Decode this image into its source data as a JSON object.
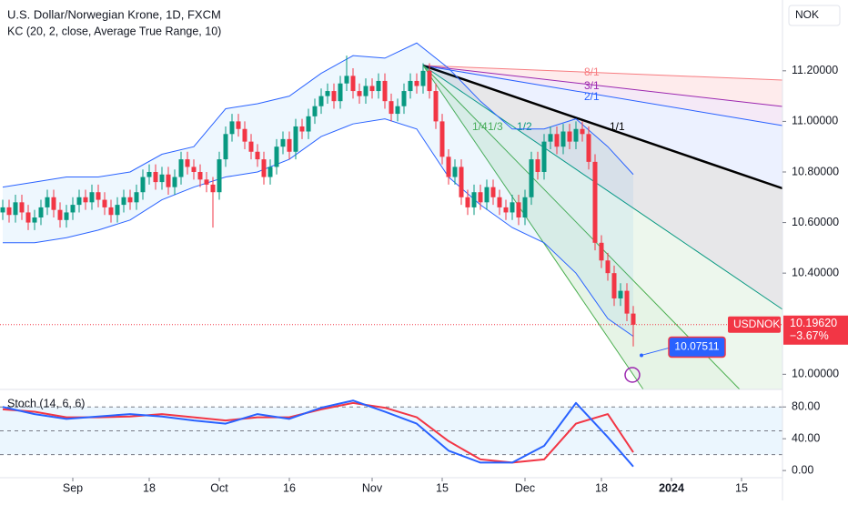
{
  "chart_data": {
    "type": "candlestick",
    "title": "U.S. Dollar/Norwegian Krone, 1D, FXCM",
    "subtitle": "KC (20, 2, close, Average True Range, 10)",
    "currency": "NOK",
    "up_color": "#089981",
    "down_color": "#f23645",
    "ylim": [
      9.94,
      11.48
    ],
    "yticks": [
      {
        "value": 11.2,
        "label": "11.20000"
      },
      {
        "value": 11.0,
        "label": "11.00000"
      },
      {
        "value": 10.8,
        "label": "10.80000"
      },
      {
        "value": 10.6,
        "label": "10.60000"
      },
      {
        "value": 10.4,
        "label": "10.40000"
      },
      {
        "value": 10.0,
        "label": "10.00000"
      }
    ],
    "x_ticks": [
      {
        "index": 11,
        "label": "Sep"
      },
      {
        "index": 23,
        "label": "18"
      },
      {
        "index": 34,
        "label": "Oct"
      },
      {
        "index": 45,
        "label": "16"
      },
      {
        "index": 58,
        "label": "Nov"
      },
      {
        "index": 69,
        "label": "15"
      },
      {
        "index": 82,
        "label": "Dec"
      },
      {
        "index": 94,
        "label": "18"
      },
      {
        "index": 105,
        "label": "2024"
      },
      {
        "index": 116,
        "label": "15"
      }
    ],
    "candles": [
      [
        10.64,
        10.69,
        10.61,
        10.66
      ],
      [
        10.66,
        10.69,
        10.6,
        10.63
      ],
      [
        10.63,
        10.71,
        10.6,
        10.68
      ],
      [
        10.68,
        10.71,
        10.61,
        10.64
      ],
      [
        10.64,
        10.67,
        10.57,
        10.6
      ],
      [
        10.6,
        10.65,
        10.57,
        10.62
      ],
      [
        10.62,
        10.69,
        10.59,
        10.66
      ],
      [
        10.66,
        10.73,
        10.63,
        10.7
      ],
      [
        10.7,
        10.73,
        10.62,
        10.65
      ],
      [
        10.65,
        10.68,
        10.58,
        10.61
      ],
      [
        10.61,
        10.67,
        10.58,
        10.64
      ],
      [
        10.64,
        10.7,
        10.61,
        10.67
      ],
      [
        10.67,
        10.73,
        10.64,
        10.7
      ],
      [
        10.7,
        10.73,
        10.65,
        10.68
      ],
      [
        10.68,
        10.75,
        10.65,
        10.72
      ],
      [
        10.72,
        10.75,
        10.66,
        10.69
      ],
      [
        10.69,
        10.72,
        10.63,
        10.66
      ],
      [
        10.66,
        10.69,
        10.6,
        10.63
      ],
      [
        10.63,
        10.7,
        10.6,
        10.67
      ],
      [
        10.67,
        10.73,
        10.64,
        10.7
      ],
      [
        10.7,
        10.73,
        10.65,
        10.68
      ],
      [
        10.68,
        10.75,
        10.65,
        10.72
      ],
      [
        10.72,
        10.81,
        10.69,
        10.78
      ],
      [
        10.78,
        10.83,
        10.75,
        10.8
      ],
      [
        10.8,
        10.83,
        10.73,
        10.76
      ],
      [
        10.76,
        10.82,
        10.73,
        10.79
      ],
      [
        10.79,
        10.82,
        10.71,
        10.74
      ],
      [
        10.74,
        10.81,
        10.71,
        10.78
      ],
      [
        10.78,
        10.88,
        10.75,
        10.85
      ],
      [
        10.85,
        10.88,
        10.79,
        10.82
      ],
      [
        10.82,
        10.85,
        10.77,
        10.8
      ],
      [
        10.8,
        10.83,
        10.74,
        10.77
      ],
      [
        10.77,
        10.8,
        10.72,
        10.75
      ],
      [
        10.75,
        10.78,
        10.58,
        10.72
      ],
      [
        10.72,
        10.88,
        10.69,
        10.85
      ],
      [
        10.85,
        10.98,
        10.82,
        10.95
      ],
      [
        10.95,
        11.03,
        10.92,
        11.0
      ],
      [
        11.0,
        11.03,
        10.94,
        10.97
      ],
      [
        10.97,
        11.0,
        10.89,
        10.92
      ],
      [
        10.92,
        10.95,
        10.85,
        10.88
      ],
      [
        10.88,
        10.91,
        10.82,
        10.85
      ],
      [
        10.85,
        10.88,
        10.75,
        10.78
      ],
      [
        10.78,
        10.85,
        10.75,
        10.82
      ],
      [
        10.82,
        10.93,
        10.79,
        10.9
      ],
      [
        10.9,
        10.96,
        10.87,
        10.93
      ],
      [
        10.93,
        10.96,
        10.85,
        10.88
      ],
      [
        10.88,
        11.01,
        10.85,
        10.98
      ],
      [
        10.98,
        11.01,
        10.93,
        10.96
      ],
      [
        10.96,
        11.05,
        10.93,
        11.02
      ],
      [
        11.02,
        11.09,
        10.99,
        11.06
      ],
      [
        11.06,
        11.13,
        11.03,
        11.1
      ],
      [
        11.1,
        11.15,
        11.07,
        11.12
      ],
      [
        11.12,
        11.15,
        11.05,
        11.08
      ],
      [
        11.08,
        11.18,
        11.05,
        11.15
      ],
      [
        11.15,
        11.26,
        11.12,
        11.18
      ],
      [
        11.18,
        11.21,
        11.09,
        11.12
      ],
      [
        11.12,
        11.15,
        11.07,
        11.1
      ],
      [
        11.1,
        11.17,
        11.07,
        11.14
      ],
      [
        11.14,
        11.17,
        11.09,
        11.12
      ],
      [
        11.12,
        11.19,
        11.09,
        11.16
      ],
      [
        11.16,
        11.19,
        11.05,
        11.08
      ],
      [
        11.08,
        11.11,
        11.0,
        11.03
      ],
      [
        11.03,
        11.09,
        11.0,
        11.06
      ],
      [
        11.06,
        11.15,
        11.03,
        11.12
      ],
      [
        11.12,
        11.19,
        11.09,
        11.16
      ],
      [
        11.16,
        11.19,
        11.11,
        11.14
      ],
      [
        11.14,
        11.23,
        11.11,
        11.2
      ],
      [
        11.2,
        11.23,
        11.09,
        11.12
      ],
      [
        11.12,
        11.15,
        10.97,
        11.0
      ],
      [
        11.0,
        11.03,
        10.83,
        10.86
      ],
      [
        10.86,
        10.89,
        10.75,
        10.78
      ],
      [
        10.78,
        10.85,
        10.75,
        10.82
      ],
      [
        10.82,
        10.85,
        10.67,
        10.7
      ],
      [
        10.7,
        10.73,
        10.63,
        10.66
      ],
      [
        10.66,
        10.75,
        10.63,
        10.72
      ],
      [
        10.72,
        10.75,
        10.65,
        10.68
      ],
      [
        10.68,
        10.77,
        10.65,
        10.74
      ],
      [
        10.74,
        10.77,
        10.67,
        10.7
      ],
      [
        10.7,
        10.73,
        10.63,
        10.66
      ],
      [
        10.66,
        10.69,
        10.61,
        10.64
      ],
      [
        10.64,
        10.71,
        10.61,
        10.68
      ],
      [
        10.68,
        10.71,
        10.59,
        10.62
      ],
      [
        10.62,
        10.73,
        10.59,
        10.7
      ],
      [
        10.7,
        10.88,
        10.67,
        10.85
      ],
      [
        10.85,
        10.88,
        10.77,
        10.8
      ],
      [
        10.8,
        10.95,
        10.77,
        10.92
      ],
      [
        10.92,
        10.98,
        10.89,
        10.95
      ],
      [
        10.95,
        10.98,
        10.87,
        10.9
      ],
      [
        10.9,
        10.99,
        10.87,
        10.96
      ],
      [
        10.96,
        10.99,
        10.89,
        10.92
      ],
      [
        10.92,
        11.0,
        10.89,
        10.97
      ],
      [
        10.97,
        11.0,
        10.92,
        10.95
      ],
      [
        10.95,
        10.98,
        10.81,
        10.84
      ],
      [
        10.84,
        10.87,
        10.49,
        10.52
      ],
      [
        10.52,
        10.55,
        10.42,
        10.45
      ],
      [
        10.45,
        10.48,
        10.37,
        10.4
      ],
      [
        10.4,
        10.43,
        10.27,
        10.3
      ],
      [
        10.3,
        10.36,
        10.27,
        10.33
      ],
      [
        10.33,
        10.36,
        10.21,
        10.24
      ],
      [
        10.24,
        10.27,
        10.11,
        10.196
      ]
    ],
    "kc": {
      "color": "#2962ff",
      "index": [
        0,
        5,
        10,
        15,
        20,
        25,
        30,
        35,
        40,
        45,
        50,
        55,
        60,
        65,
        70,
        75,
        80,
        85,
        90,
        95,
        99
      ],
      "upper": [
        10.74,
        10.76,
        10.78,
        10.78,
        10.8,
        10.87,
        10.9,
        11.05,
        11.07,
        11.1,
        11.19,
        11.26,
        11.25,
        11.31,
        11.21,
        11.08,
        10.97,
        10.97,
        11.01,
        10.9,
        10.79
      ],
      "lower": [
        10.52,
        10.52,
        10.54,
        10.57,
        10.61,
        10.69,
        10.74,
        10.78,
        10.8,
        10.85,
        10.94,
        10.99,
        11.01,
        10.97,
        10.78,
        10.67,
        10.58,
        10.52,
        10.4,
        10.22,
        10.15
      ]
    },
    "last": {
      "symbol": "USDNOK",
      "price": {
        "value": 10.1962,
        "label": "10.19620"
      },
      "change": {
        "value": -3.67,
        "label": "−3.67%"
      }
    },
    "marker": 10.07511,
    "fan_labels": [
      "8/1",
      "3/1",
      "2/1",
      "1/1",
      "1/2",
      "1/3",
      "1/4"
    ],
    "stoch": {
      "title": "Stoch (14, 6, 6)",
      "ylim": [
        -9,
        102
      ],
      "yticks": [
        {
          "value": 80,
          "label": "80.00"
        },
        {
          "value": 40,
          "label": "40.00"
        },
        {
          "value": 0,
          "label": "0.00"
        }
      ],
      "levels": [
        80,
        50,
        20
      ],
      "index": [
        0,
        5,
        10,
        15,
        20,
        25,
        30,
        35,
        40,
        45,
        50,
        55,
        60,
        65,
        70,
        75,
        80,
        85,
        90,
        95,
        99
      ],
      "k": {
        "color": "#2962ff",
        "values": [
          80,
          71,
          65,
          68,
          71,
          68,
          63,
          59,
          71,
          65,
          79,
          88,
          74,
          59,
          25,
          10,
          10,
          31,
          85,
          42,
          5
        ]
      },
      "d": {
        "color": "#f23645",
        "values": [
          77,
          74,
          67,
          67,
          68,
          71,
          67,
          63,
          67,
          67,
          77,
          85,
          79,
          67,
          37,
          14,
          10,
          14,
          59,
          71,
          23
        ]
      }
    }
  }
}
